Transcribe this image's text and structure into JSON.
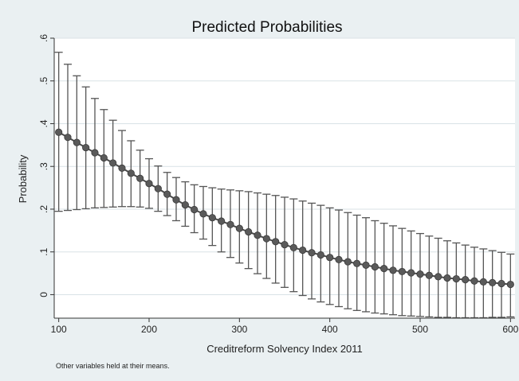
{
  "chart_data": {
    "type": "scatter",
    "title": "Predicted Probabilities",
    "xlabel": "Creditreform Solvency Index 2011",
    "ylabel": "Probability",
    "note": "Other variables held at their means.",
    "xlim": [
      95,
      605
    ],
    "ylim": [
      -0.055,
      0.6
    ],
    "xticks": [
      100,
      200,
      300,
      400,
      500,
      600
    ],
    "yticks": [
      0,
      0.1,
      0.2,
      0.3,
      0.4,
      0.5,
      0.6
    ],
    "ytick_labels": [
      "0",
      ".1",
      ".2",
      ".3",
      ".4",
      ".5",
      ".6"
    ],
    "grid": true,
    "series": [
      {
        "x": [
          100,
          110,
          120,
          130,
          140,
          150,
          160,
          170,
          180,
          190,
          200,
          210,
          220,
          230,
          240,
          250,
          260,
          270,
          280,
          290,
          300,
          310,
          320,
          330,
          340,
          350,
          360,
          370,
          380,
          390,
          400,
          410,
          420,
          430,
          440,
          450,
          460,
          470,
          480,
          490,
          500,
          510,
          520,
          530,
          540,
          550,
          560,
          570,
          580,
          590,
          600
        ],
        "y": [
          0.38,
          0.368,
          0.356,
          0.344,
          0.332,
          0.32,
          0.308,
          0.296,
          0.284,
          0.272,
          0.26,
          0.248,
          0.235,
          0.222,
          0.21,
          0.199,
          0.189,
          0.18,
          0.172,
          0.164,
          0.155,
          0.147,
          0.139,
          0.131,
          0.124,
          0.117,
          0.11,
          0.104,
          0.098,
          0.093,
          0.087,
          0.082,
          0.077,
          0.073,
          0.069,
          0.065,
          0.061,
          0.057,
          0.054,
          0.051,
          0.048,
          0.045,
          0.042,
          0.039,
          0.037,
          0.035,
          0.032,
          0.03,
          0.028,
          0.026,
          0.024
        ],
        "lower": [
          0.195,
          0.197,
          0.199,
          0.201,
          0.203,
          0.204,
          0.205,
          0.206,
          0.206,
          0.205,
          0.202,
          0.195,
          0.185,
          0.173,
          0.16,
          0.145,
          0.13,
          0.115,
          0.1,
          0.087,
          0.074,
          0.061,
          0.049,
          0.038,
          0.027,
          0.017,
          0.007,
          -0.002,
          -0.01,
          -0.017,
          -0.023,
          -0.028,
          -0.033,
          -0.037,
          -0.04,
          -0.043,
          -0.045,
          -0.047,
          -0.049,
          -0.05,
          -0.051,
          -0.052,
          -0.053,
          -0.053,
          -0.054,
          -0.054,
          -0.054,
          -0.054,
          -0.053,
          -0.053,
          -0.052
        ],
        "upper": [
          0.567,
          0.539,
          0.512,
          0.486,
          0.459,
          0.433,
          0.408,
          0.384,
          0.36,
          0.338,
          0.318,
          0.301,
          0.286,
          0.274,
          0.264,
          0.257,
          0.253,
          0.25,
          0.247,
          0.245,
          0.243,
          0.241,
          0.238,
          0.235,
          0.232,
          0.228,
          0.224,
          0.219,
          0.214,
          0.209,
          0.203,
          0.198,
          0.192,
          0.186,
          0.18,
          0.173,
          0.167,
          0.161,
          0.155,
          0.149,
          0.143,
          0.137,
          0.132,
          0.126,
          0.121,
          0.116,
          0.111,
          0.107,
          0.103,
          0.099,
          0.095
        ]
      }
    ]
  },
  "colors": {
    "background": "#eaf0f2",
    "plot_background": "#ffffff",
    "marker": "#5a5a5a",
    "line": "#4a4a4a",
    "errorbar": "#555555",
    "grid": "#d9e2e6"
  }
}
